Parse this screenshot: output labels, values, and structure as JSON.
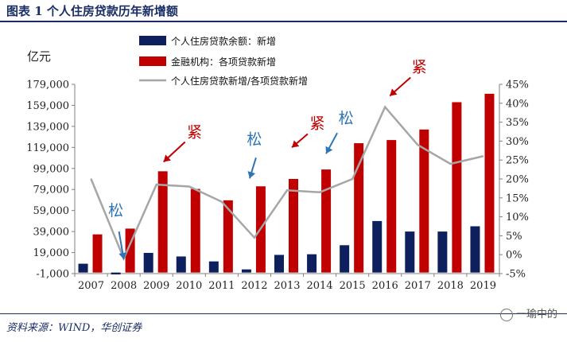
{
  "page": {
    "title": "图表 1    个人住房贷款历年新增额",
    "source": "资料来源：WIND，华创证券",
    "watermark": "一瑜中的"
  },
  "chart_data": {
    "type": "bar",
    "categories": [
      "2007",
      "2008",
      "2009",
      "2010",
      "2011",
      "2012",
      "2013",
      "2014",
      "2015",
      "2016",
      "2017",
      "2018",
      "2019"
    ],
    "series": [
      {
        "name": "个人住房贷款余额：新增",
        "type": "bar",
        "axis": "left",
        "color": "#0d1f5c",
        "values": [
          8400,
          -1800,
          18700,
          15300,
          10600,
          3000,
          16800,
          17400,
          26000,
          49000,
          39000,
          39000,
          44000
        ]
      },
      {
        "name": "金融机构：各项贷款新增",
        "type": "bar",
        "axis": "left",
        "color": "#c00000",
        "values": [
          36300,
          41800,
          96300,
          79500,
          68700,
          82000,
          89000,
          98000,
          123000,
          126000,
          136000,
          162000,
          170000
        ]
      },
      {
        "name": "个人住房贷款新增/各项贷款新增",
        "type": "line",
        "axis": "right",
        "unit": "%",
        "color": "#a6a6a6",
        "values": [
          20.0,
          -1.0,
          18.5,
          18.0,
          14.0,
          4.5,
          17.0,
          16.5,
          20.0,
          39.0,
          29.0,
          24.0,
          26.0
        ]
      }
    ],
    "y_left": {
      "unit_label": "亿元",
      "min": -1000,
      "max": 179000,
      "ticks": [
        "179,000",
        "159,000",
        "139,000",
        "119,000",
        "99,000",
        "79,000",
        "59,000",
        "39,000",
        "19,000",
        "-1,000"
      ]
    },
    "y_right": {
      "min": -5,
      "max": 45,
      "ticks": [
        "45%",
        "40%",
        "35%",
        "30%",
        "25%",
        "20%",
        "15%",
        "10%",
        "5%",
        "0%",
        "-5%"
      ]
    },
    "legend": {
      "placement": "top-center"
    },
    "grid": false,
    "annotations": [
      {
        "text": "松",
        "color": "#2e75b6",
        "category": "2008",
        "value": 2000
      },
      {
        "text": "紧",
        "color": "#c00000",
        "category": "2009",
        "value": 100000
      },
      {
        "text": "松",
        "color": "#2e75b6",
        "category": "2012",
        "value": 85000
      },
      {
        "text": "紧",
        "color": "#c00000",
        "category": "2013",
        "value": 94000
      },
      {
        "text": "松",
        "color": "#2e75b6",
        "category": "2014",
        "value": 104000
      },
      {
        "text": "紧",
        "color": "#c00000",
        "category": "2016",
        "value": 159000
      }
    ]
  }
}
